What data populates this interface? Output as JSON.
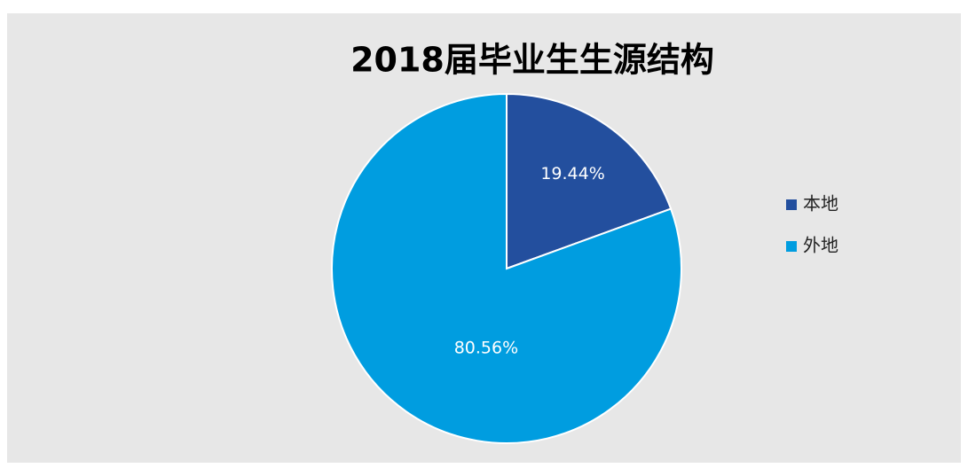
{
  "chart_data": {
    "type": "pie",
    "title": "2018届毕业生生源结构",
    "categories": [
      "本地",
      "外地"
    ],
    "values": [
      19.44,
      80.56
    ],
    "value_labels": [
      "19.44%",
      "80.56%"
    ],
    "colors": [
      "#234f9e",
      "#009de0"
    ],
    "legend": "right"
  }
}
